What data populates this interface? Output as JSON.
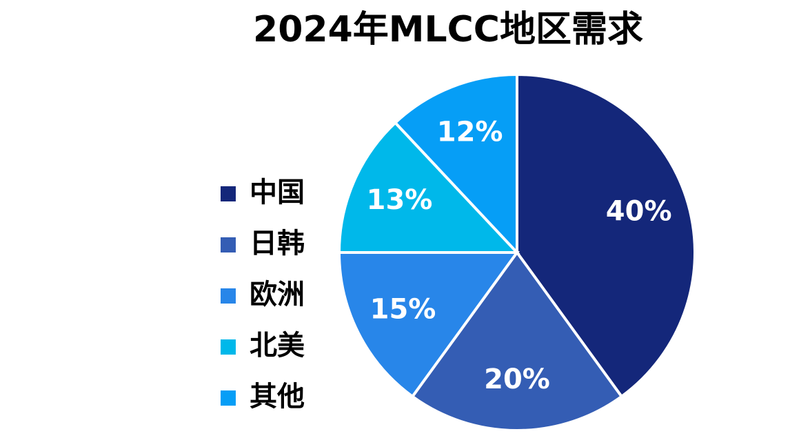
{
  "chart_data": {
    "type": "pie",
    "title": "2024年MLCC地区需求",
    "categories": [
      "中国",
      "日韩",
      "欧洲",
      "北美",
      "其他"
    ],
    "values": [
      40,
      20,
      15,
      13,
      12
    ],
    "value_labels": [
      "40%",
      "20%",
      "15%",
      "13%",
      "12%"
    ],
    "colors": [
      "#14277a",
      "#345db4",
      "#2886e9",
      "#00b8ea",
      "#069ef6"
    ],
    "legend": "left"
  }
}
